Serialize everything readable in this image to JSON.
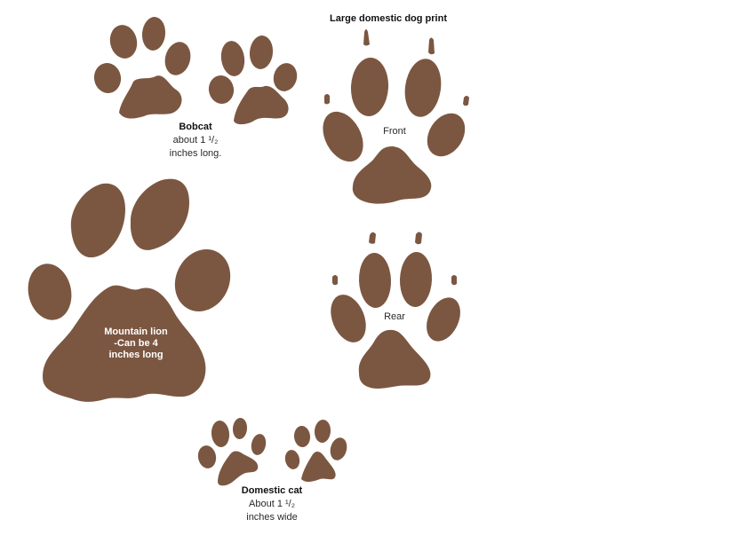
{
  "colors": {
    "paw": "#7b5741",
    "background": "#ffffff"
  },
  "bobcat": {
    "name": "Bobcat",
    "line1": "about 1 ¹/₂",
    "line2": "inches long."
  },
  "dog": {
    "title": "Large domestic dog print",
    "front": "Front",
    "rear": "Rear"
  },
  "lion": {
    "line1": "Mountain lion",
    "line2": "-Can be 4",
    "line3": "inches long"
  },
  "cat": {
    "name": "Domestic cat",
    "line1": "About 1 ¹/₂",
    "line2": "inches wide"
  }
}
